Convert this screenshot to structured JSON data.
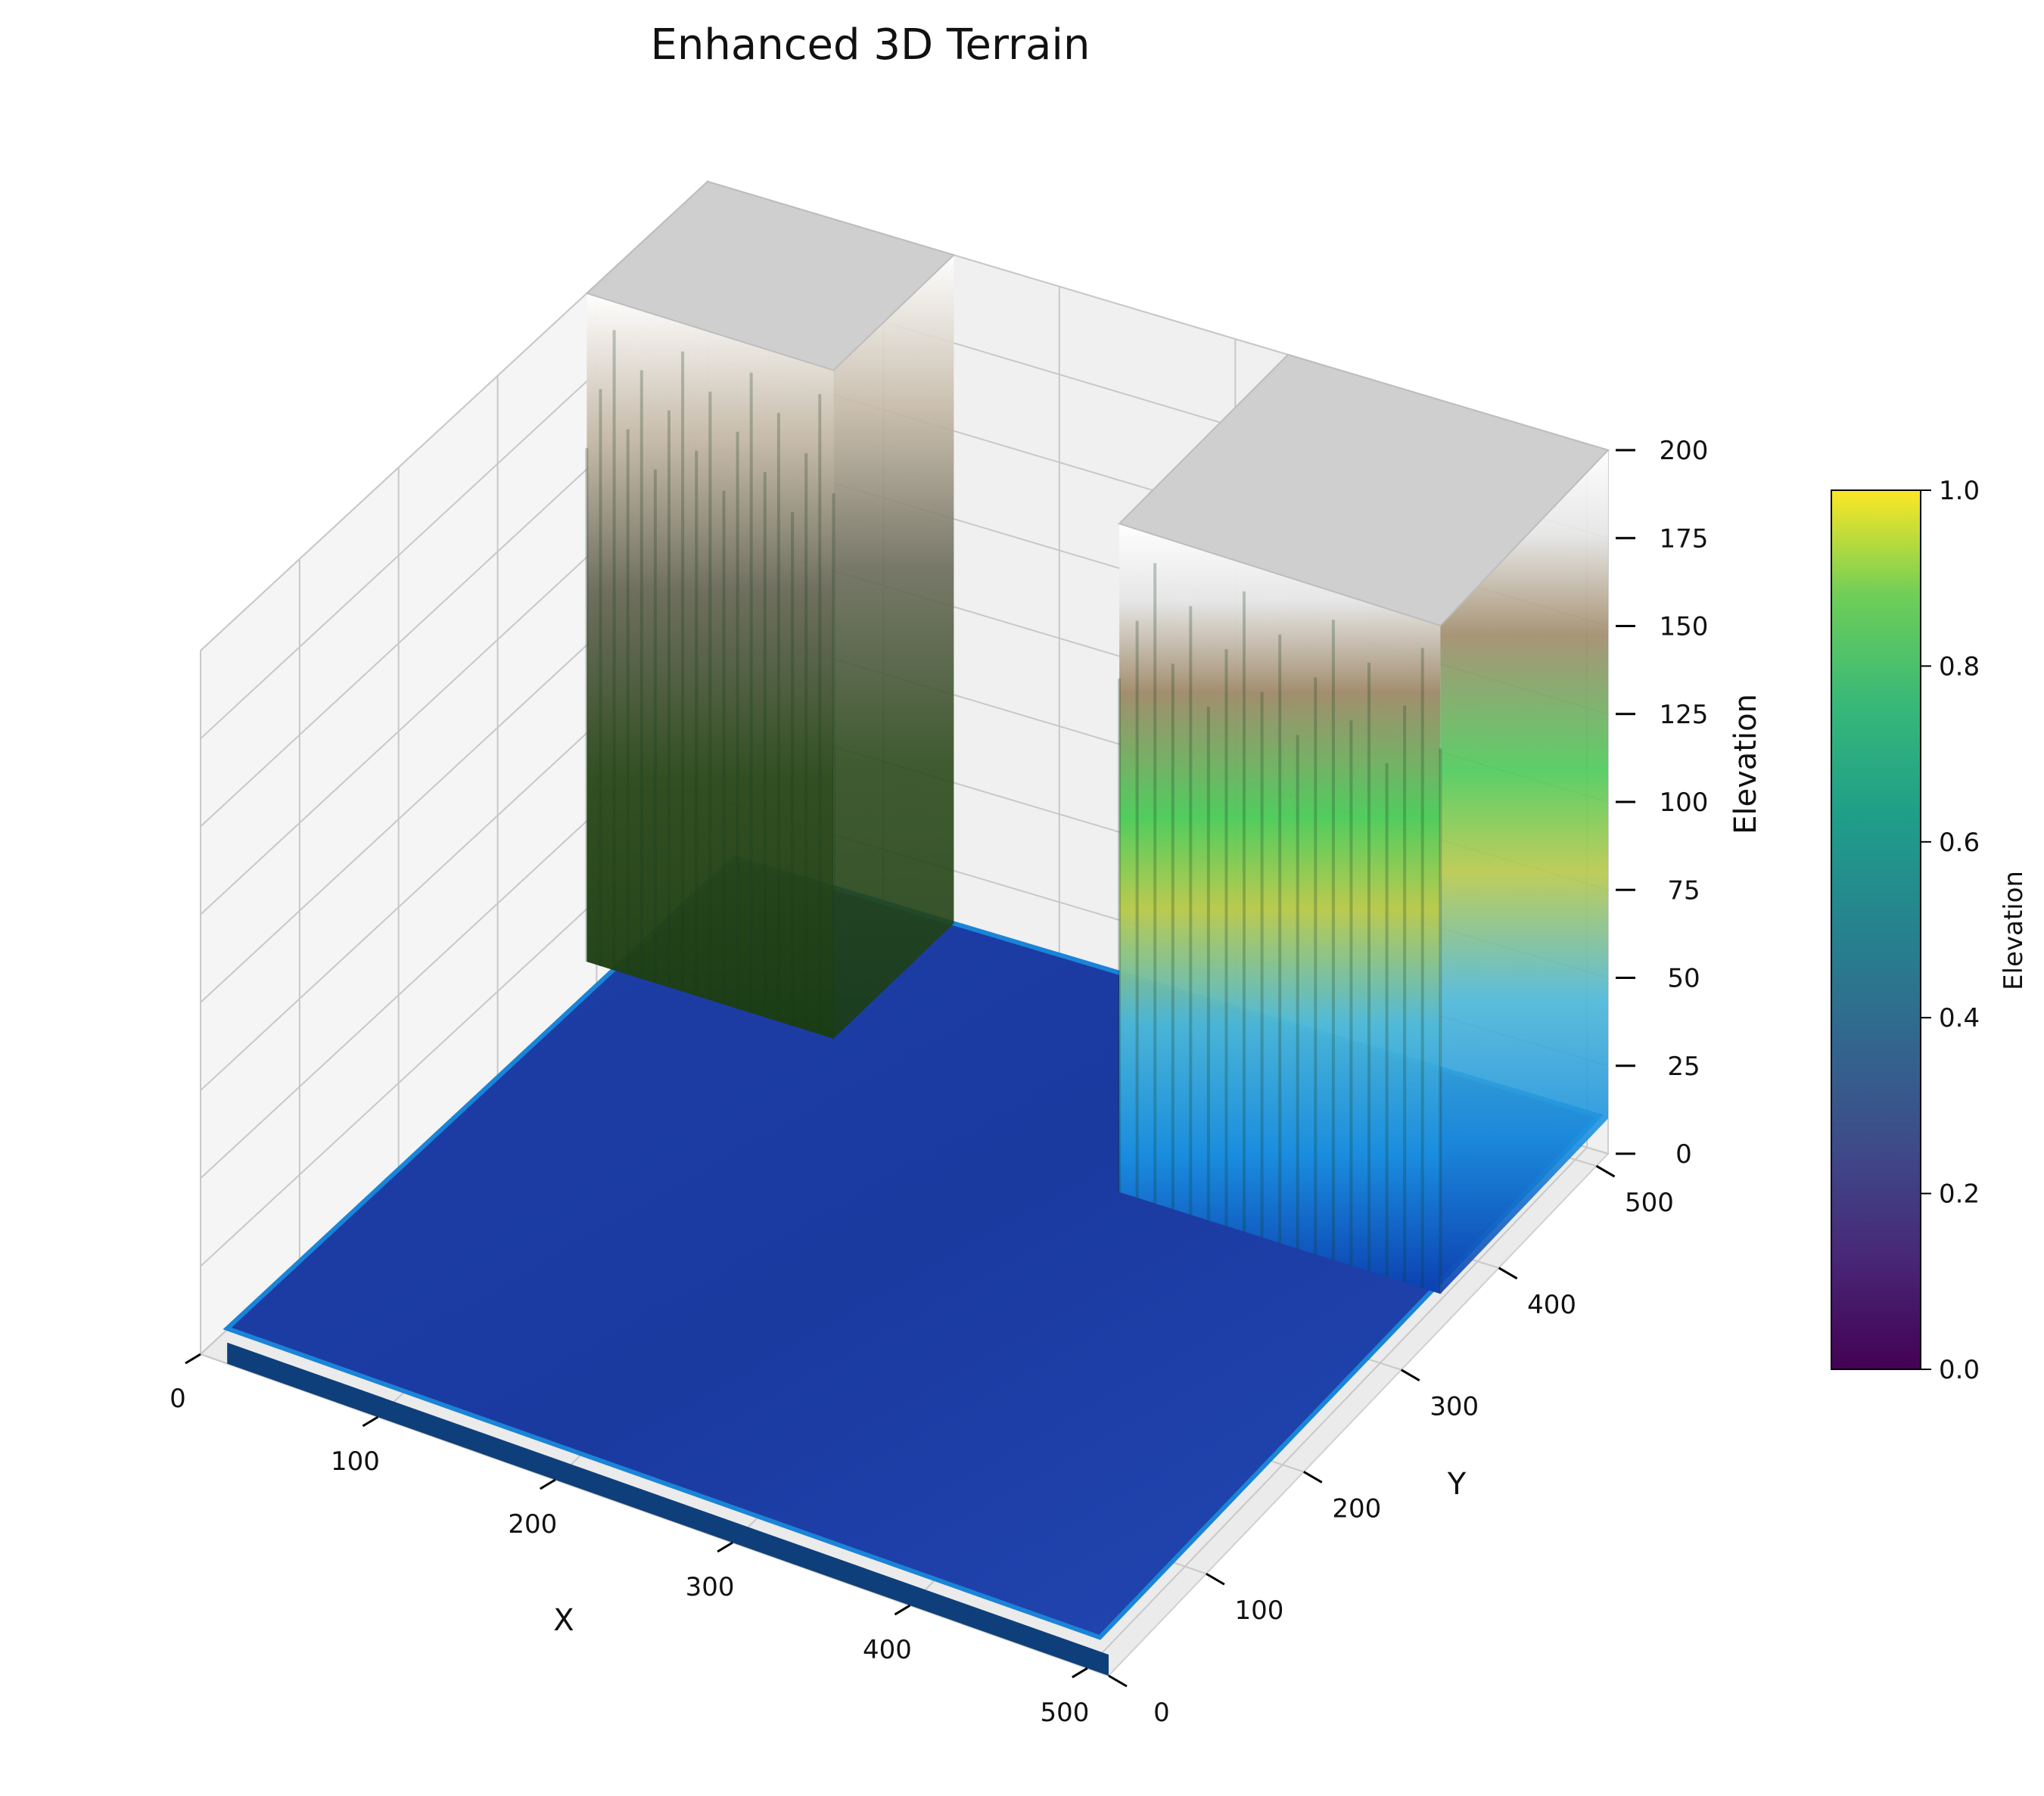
{
  "chart_data": [
    {
      "type": "surface",
      "title": "Enhanced 3D Terrain",
      "xlabel": "X",
      "ylabel": "Y",
      "zlabel": "Elevation",
      "x_ticks": [
        "0",
        "100",
        "200",
        "300",
        "400",
        "500"
      ],
      "y_ticks": [
        "0",
        "100",
        "200",
        "300",
        "400",
        "500"
      ],
      "z_ticks": [
        "0",
        "25",
        "50",
        "75",
        "100",
        "125",
        "150",
        "175",
        "200"
      ],
      "xlim": [
        0,
        512
      ],
      "ylim": [
        0,
        512
      ],
      "zlim": [
        0,
        200
      ],
      "grid": true,
      "colormap": "terrain",
      "terrain_regions": [
        {
          "x_range": [
            0,
            140
          ],
          "y_range": [
            390,
            512
          ],
          "elevation": 200
        },
        {
          "x_range": [
            330,
            512
          ],
          "y_range": [
            340,
            512
          ],
          "elevation": 200
        }
      ],
      "base_elevation": 10
    },
    {
      "type": "colorbar",
      "label": "Elevation",
      "ticks": [
        "0.0",
        "0.2",
        "0.4",
        "0.6",
        "0.8",
        "1.0"
      ],
      "range": [
        0,
        1
      ],
      "colormap": "viridis"
    }
  ]
}
